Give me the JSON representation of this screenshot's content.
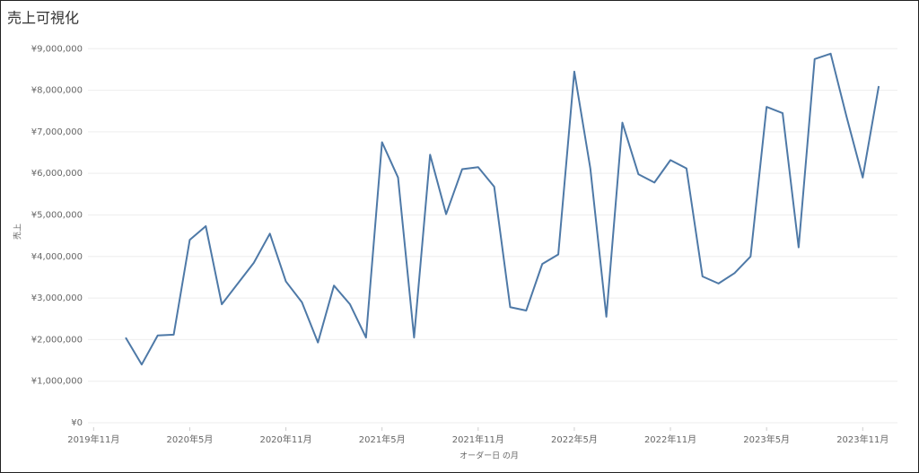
{
  "chart_data": {
    "type": "line",
    "title": "売上可視化",
    "x_label": "オーダー日 の月",
    "y_label": "売上",
    "x": [
      "2020-01",
      "2020-02",
      "2020-03",
      "2020-04",
      "2020-05",
      "2020-06",
      "2020-07",
      "2020-08",
      "2020-09",
      "2020-10",
      "2020-11",
      "2020-12",
      "2021-01",
      "2021-02",
      "2021-03",
      "2021-04",
      "2021-05",
      "2021-06",
      "2021-07",
      "2021-08",
      "2021-09",
      "2021-10",
      "2021-11",
      "2021-12",
      "2022-01",
      "2022-02",
      "2022-03",
      "2022-04",
      "2022-05",
      "2022-06",
      "2022-07",
      "2022-08",
      "2022-09",
      "2022-10",
      "2022-11",
      "2022-12",
      "2023-01",
      "2023-02",
      "2023-03",
      "2023-04",
      "2023-05",
      "2023-06",
      "2023-07",
      "2023-08",
      "2023-09",
      "2023-10",
      "2023-11",
      "2023-12"
    ],
    "series": [
      {
        "name": "売上",
        "color": "#4e79a7",
        "values": [
          2050000,
          1400000,
          2100000,
          2120000,
          4400000,
          4730000,
          2850000,
          3350000,
          3850000,
          4550000,
          3400000,
          2900000,
          1930000,
          3300000,
          2850000,
          2050000,
          6750000,
          5900000,
          2050000,
          6450000,
          5020000,
          6100000,
          6150000,
          5680000,
          2780000,
          2700000,
          3820000,
          4050000,
          8450000,
          6120000,
          2550000,
          7220000,
          5980000,
          5780000,
          6320000,
          6120000,
          3520000,
          3350000,
          3600000,
          4000000,
          7600000,
          7450000,
          4220000,
          8750000,
          8880000,
          7350000,
          5900000,
          8100000
        ]
      }
    ],
    "xlim": [
      "2019-09",
      "2024-01"
    ],
    "xticks": [
      {
        "value": "2019-11",
        "label": "2019年11月"
      },
      {
        "value": "2020-05",
        "label": "2020年5月"
      },
      {
        "value": "2020-11",
        "label": "2020年11月"
      },
      {
        "value": "2021-05",
        "label": "2021年5月"
      },
      {
        "value": "2021-11",
        "label": "2021年11月"
      },
      {
        "value": "2022-05",
        "label": "2022年5月"
      },
      {
        "value": "2022-11",
        "label": "2022年11月"
      },
      {
        "value": "2023-05",
        "label": "2023年5月"
      },
      {
        "value": "2023-11",
        "label": "2023年11月"
      }
    ],
    "ylim": [
      0,
      9200000
    ],
    "yticks": [
      {
        "value": 0,
        "label": "¥0"
      },
      {
        "value": 1000000,
        "label": "¥1,000,000"
      },
      {
        "value": 2000000,
        "label": "¥2,000,000"
      },
      {
        "value": 3000000,
        "label": "¥3,000,000"
      },
      {
        "value": 4000000,
        "label": "¥4,000,000"
      },
      {
        "value": 5000000,
        "label": "¥5,000,000"
      },
      {
        "value": 6000000,
        "label": "¥6,000,000"
      },
      {
        "value": 7000000,
        "label": "¥7,000,000"
      },
      {
        "value": 8000000,
        "label": "¥8,000,000"
      },
      {
        "value": 9000000,
        "label": "¥9,000,000"
      }
    ],
    "grid": true
  }
}
